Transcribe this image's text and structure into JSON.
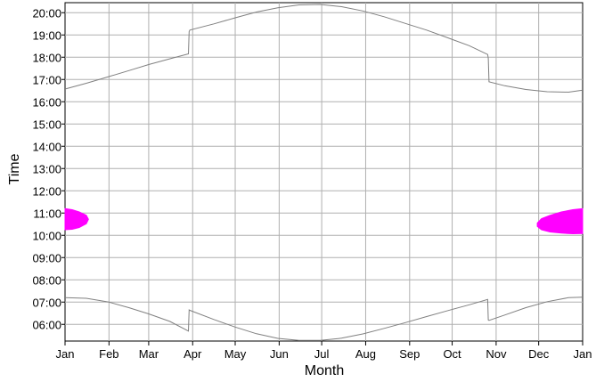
{
  "chart_data": {
    "type": "line",
    "title": "",
    "xlabel": "Month",
    "ylabel": "Time",
    "x_tick_labels": [
      "Jan",
      "Feb",
      "Mar",
      "Apr",
      "May",
      "Jun",
      "Jul",
      "Aug",
      "Sep",
      "Oct",
      "Nov",
      "Dec",
      "Jan"
    ],
    "y_tick_labels": [
      "06:00",
      "07:00",
      "08:00",
      "09:00",
      "10:00",
      "11:00",
      "12:00",
      "13:00",
      "14:00",
      "15:00",
      "16:00",
      "17:00",
      "18:00",
      "19:00",
      "20:00"
    ],
    "xlim": [
      0,
      365
    ],
    "ylim_hours": [
      5.25,
      20.45
    ],
    "grid": true,
    "series": [
      {
        "role": "sunset",
        "color": "#808080",
        "points": [
          [
            0,
            16.57
          ],
          [
            15,
            16.83
          ],
          [
            31,
            17.13
          ],
          [
            45,
            17.4
          ],
          [
            59,
            17.67
          ],
          [
            74,
            17.93
          ],
          [
            87,
            18.15
          ],
          [
            87.5,
            19.15
          ],
          [
            88,
            19.22
          ],
          [
            105,
            19.5
          ],
          [
            120,
            19.77
          ],
          [
            135,
            20.03
          ],
          [
            150,
            20.22
          ],
          [
            165,
            20.35
          ],
          [
            180,
            20.37
          ],
          [
            195,
            20.27
          ],
          [
            210,
            20.08
          ],
          [
            225,
            19.82
          ],
          [
            240,
            19.52
          ],
          [
            255,
            19.22
          ],
          [
            270,
            18.87
          ],
          [
            285,
            18.52
          ],
          [
            298,
            18.12
          ],
          [
            298.5,
            17.95
          ],
          [
            299,
            16.9
          ],
          [
            310,
            16.72
          ],
          [
            325,
            16.55
          ],
          [
            340,
            16.45
          ],
          [
            355,
            16.43
          ],
          [
            365,
            16.52
          ]
        ]
      },
      {
        "role": "sunrise",
        "color": "#808080",
        "points": [
          [
            0,
            7.2
          ],
          [
            15,
            7.17
          ],
          [
            31,
            7.0
          ],
          [
            45,
            6.75
          ],
          [
            59,
            6.47
          ],
          [
            74,
            6.13
          ],
          [
            87,
            5.7
          ],
          [
            87.5,
            6.65
          ],
          [
            88,
            6.63
          ],
          [
            105,
            6.22
          ],
          [
            120,
            5.88
          ],
          [
            135,
            5.58
          ],
          [
            150,
            5.37
          ],
          [
            165,
            5.28
          ],
          [
            180,
            5.28
          ],
          [
            195,
            5.38
          ],
          [
            210,
            5.57
          ],
          [
            225,
            5.82
          ],
          [
            240,
            6.08
          ],
          [
            255,
            6.35
          ],
          [
            270,
            6.62
          ],
          [
            285,
            6.88
          ],
          [
            298,
            7.12
          ],
          [
            298.5,
            6.2
          ],
          [
            299,
            6.18
          ],
          [
            310,
            6.42
          ],
          [
            325,
            6.75
          ],
          [
            340,
            7.02
          ],
          [
            355,
            7.2
          ],
          [
            365,
            7.22
          ]
        ]
      }
    ],
    "highlight_regions": [
      {
        "color": "#ff00ff",
        "outline": [
          [
            0,
            11.2
          ],
          [
            5,
            11.15
          ],
          [
            10,
            11.05
          ],
          [
            15,
            10.9
          ],
          [
            16.5,
            10.72
          ],
          [
            15,
            10.52
          ],
          [
            10,
            10.35
          ],
          [
            5,
            10.27
          ],
          [
            0,
            10.25
          ]
        ]
      },
      {
        "color": "#ff00ff",
        "outline": [
          [
            333,
            10.55
          ],
          [
            336,
            10.75
          ],
          [
            342,
            10.9
          ],
          [
            350,
            11.05
          ],
          [
            358,
            11.15
          ],
          [
            365,
            11.2
          ],
          [
            365,
            10.08
          ],
          [
            358,
            10.07
          ],
          [
            350,
            10.1
          ],
          [
            342,
            10.15
          ],
          [
            336,
            10.25
          ],
          [
            333,
            10.4
          ]
        ]
      }
    ]
  }
}
